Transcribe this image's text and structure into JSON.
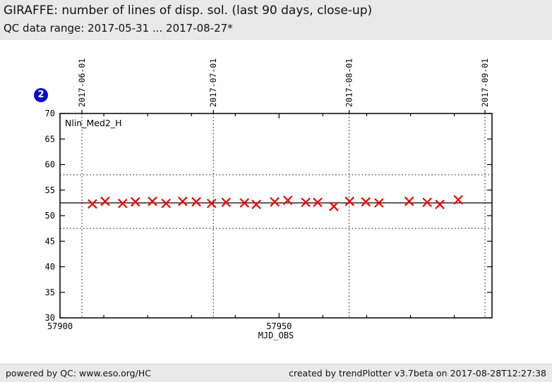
{
  "header": {
    "title": "GIRAFFE: number of lines of disp. sol. (last 90 days, close-up)",
    "subtitle": "QC data range: 2017-05-31 ... 2017-08-27*"
  },
  "badge": {
    "label": "2"
  },
  "chart_data": {
    "type": "scatter",
    "title": "",
    "xlabel": "MJD_OBS",
    "ylabel": "",
    "xlim": [
      57900,
      57998.6
    ],
    "ylim": [
      30,
      70
    ],
    "yticks": [
      30,
      35,
      40,
      45,
      50,
      55,
      60,
      65,
      70
    ],
    "xticks_labeled": [
      57900,
      57950
    ],
    "xticks_minor": [
      57910,
      57920,
      57930,
      57940,
      57960,
      57970,
      57980,
      57990
    ],
    "date_lines": [
      {
        "mjd": 57905,
        "label": "2017-06-01"
      },
      {
        "mjd": 57935,
        "label": "2017-07-01"
      },
      {
        "mjd": 57966,
        "label": "2017-08-01"
      },
      {
        "mjd": 57997,
        "label": "2017-09-01"
      }
    ],
    "annotation": "Nlin_Med2_H",
    "center_line": 52.5,
    "threshold_lines": [
      58,
      47.5
    ],
    "grid": false,
    "series": [
      {
        "name": "Nlin_Med2_H",
        "marker": "x",
        "color": "#ee0000",
        "x": [
          57907.4,
          57910.3,
          57914.3,
          57917.2,
          57921.1,
          57924.2,
          57928.0,
          57931.1,
          57934.6,
          57937.9,
          57942.1,
          57944.8,
          57949.0,
          57952.0,
          57956.1,
          57958.8,
          57962.5,
          57966.1,
          57969.8,
          57972.8,
          57979.7,
          57983.8,
          57986.7,
          57990.9
        ],
        "y": [
          52.3,
          52.8,
          52.4,
          52.7,
          52.8,
          52.4,
          52.8,
          52.7,
          52.4,
          52.6,
          52.5,
          52.2,
          52.7,
          53.0,
          52.6,
          52.6,
          51.8,
          52.8,
          52.7,
          52.5,
          52.8,
          52.6,
          52.2,
          53.1
        ]
      }
    ]
  },
  "footer": {
    "left": "powered by QC: www.eso.org/HC",
    "right": "created by trendPlotter v3.7beta on 2017-08-28T12:27:38"
  },
  "colors": {
    "page_background": "#e9e9e9",
    "plot_background": "#ffffff",
    "axis": "#000000",
    "marker": "#ee0000",
    "badge": "#0a0ace"
  }
}
